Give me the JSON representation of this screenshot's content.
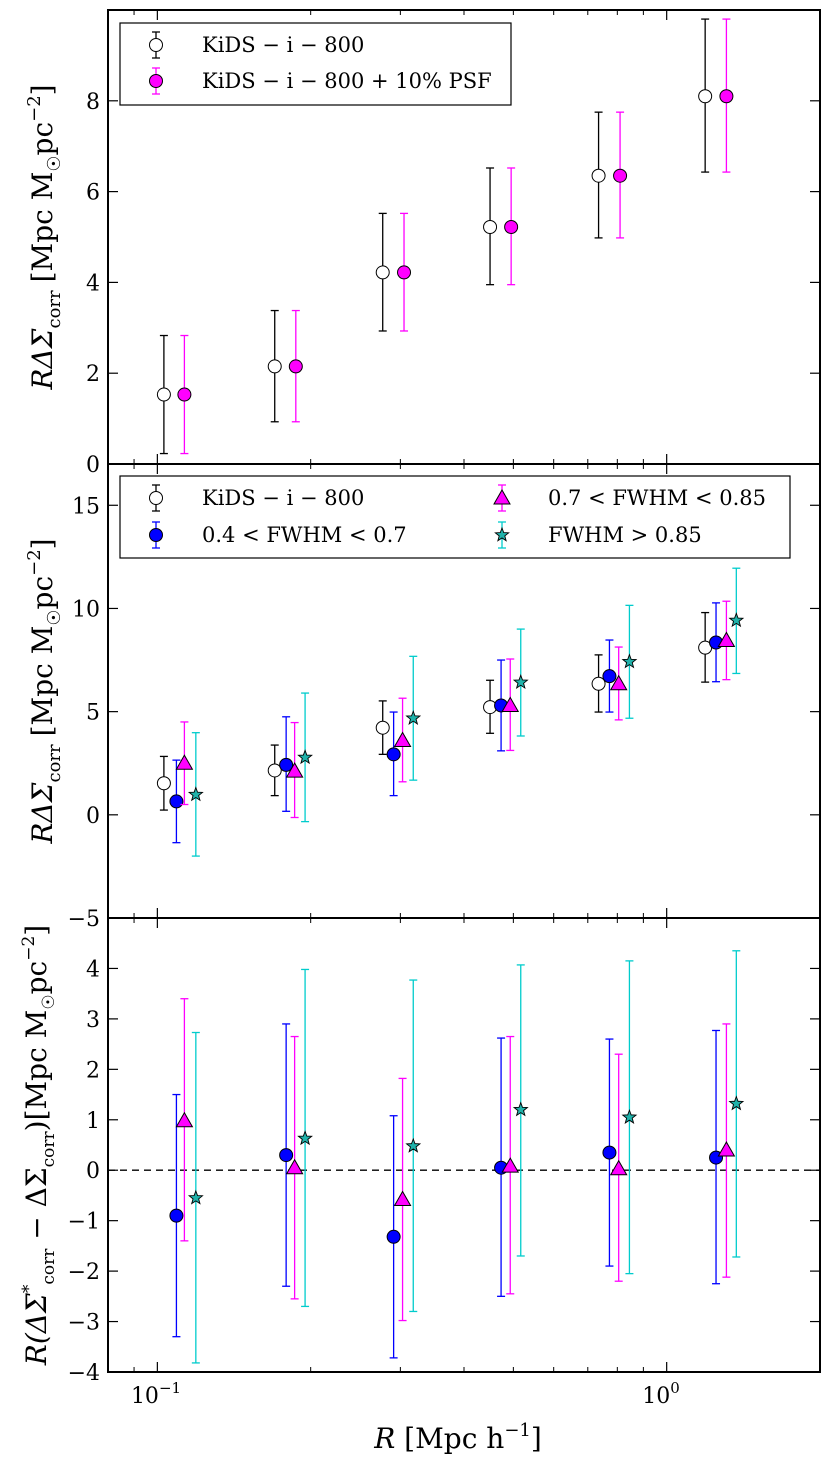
{
  "chart_data": [
    {
      "type": "scatter",
      "panel": "top",
      "ylabel": "RΔΣ_corr [Mpc M☉pc⁻²]",
      "ylim": [
        0,
        10
      ],
      "yticks": [
        0,
        2,
        4,
        6,
        8
      ],
      "ytick_labels": [
        "0",
        "2",
        "4",
        "6",
        "8"
      ],
      "legend_position": "upper-left",
      "series": [
        {
          "name": "KiDS − i − 800",
          "marker": "circle",
          "face_color": "#ffffff",
          "bar_color": "#000000",
          "x": [
            0.103,
            0.17,
            0.277,
            0.45,
            0.735,
            1.19
          ],
          "y": [
            1.53,
            2.15,
            4.22,
            5.22,
            6.35,
            8.1
          ],
          "yerr_low": [
            0.23,
            0.93,
            2.93,
            3.95,
            4.98,
            6.43
          ],
          "yerr_high": [
            2.83,
            3.38,
            5.52,
            6.52,
            7.75,
            9.8
          ]
        },
        {
          "name": "KiDS − i − 800 + 10% PSF",
          "marker": "circle",
          "face_color": "#ff00ff",
          "bar_color": "#ff00ff",
          "x": [
            0.113,
            0.187,
            0.305,
            0.495,
            0.81,
            1.31
          ],
          "y": [
            1.53,
            2.15,
            4.22,
            5.22,
            6.35,
            8.1
          ],
          "yerr_low": [
            0.23,
            0.93,
            2.93,
            3.95,
            4.98,
            6.43
          ],
          "yerr_high": [
            2.83,
            3.38,
            5.52,
            6.52,
            7.75,
            9.8
          ]
        }
      ]
    },
    {
      "type": "scatter",
      "panel": "middle",
      "ylabel": "RΔΣ_corr [Mpc M☉pc⁻²]",
      "ylim": [
        -5,
        17
      ],
      "yticks": [
        -5,
        0,
        5,
        10,
        15
      ],
      "ytick_labels": [
        "−5",
        "0",
        "5",
        "10",
        "15"
      ],
      "legend_position": "upper-left",
      "series": [
        {
          "name": "KiDS − i − 800",
          "marker": "circle",
          "face_color": "#ffffff",
          "bar_color": "#000000",
          "x": [
            0.103,
            0.17,
            0.277,
            0.45,
            0.735,
            1.19
          ],
          "y": [
            1.53,
            2.15,
            4.22,
            5.22,
            6.35,
            8.1
          ],
          "yerr_low": [
            0.23,
            0.93,
            2.93,
            3.95,
            4.98,
            6.43
          ],
          "yerr_high": [
            2.83,
            3.38,
            5.52,
            6.52,
            7.75,
            9.8
          ]
        },
        {
          "name": "0.4 < FWHM < 0.7",
          "marker": "circle",
          "face_color": "#0000ff",
          "bar_color": "#0000ff",
          "x": [
            0.109,
            0.179,
            0.291,
            0.473,
            0.772,
            1.25
          ],
          "y": [
            0.65,
            2.42,
            2.93,
            5.3,
            6.72,
            8.35
          ],
          "yerr_low": [
            -1.35,
            0.17,
            0.93,
            3.1,
            4.98,
            6.45
          ],
          "yerr_high": [
            2.65,
            4.75,
            4.98,
            7.5,
            8.47,
            10.27
          ]
        },
        {
          "name": "0.7 < FWHM < 0.85",
          "marker": "triangle",
          "face_color": "#ff00ff",
          "bar_color": "#ff00ff",
          "x": [
            0.113,
            0.186,
            0.303,
            0.493,
            0.805,
            1.31
          ],
          "y": [
            2.5,
            2.12,
            3.6,
            5.3,
            6.35,
            8.45
          ],
          "yerr_low": [
            0.5,
            -0.13,
            1.6,
            3.12,
            4.6,
            6.55
          ],
          "yerr_high": [
            4.5,
            4.47,
            5.65,
            7.55,
            8.13,
            10.35
          ]
        },
        {
          "name": "FWHM > 0.85",
          "marker": "star",
          "face_color": "#20b2aa",
          "bar_color": "#00cccc",
          "x": [
            0.119,
            0.195,
            0.318,
            0.517,
            0.845,
            1.37
          ],
          "y": [
            0.98,
            2.78,
            4.68,
            6.42,
            7.42,
            9.42
          ],
          "yerr_low": [
            -2.0,
            -0.33,
            1.68,
            3.82,
            4.68,
            6.85
          ],
          "yerr_high": [
            3.98,
            5.9,
            7.68,
            9.0,
            10.15,
            11.95
          ]
        }
      ]
    },
    {
      "type": "scatter",
      "panel": "bottom",
      "xlabel": "R [Mpc h⁻¹]",
      "ylabel": "R(ΔΣ*_corr − ΔΣ_corr) [Mpc M☉pc⁻²]",
      "xscale": "log",
      "xlim": [
        0.08,
        2.0
      ],
      "xticks": [
        0.1,
        1.0
      ],
      "ylim": [
        -4,
        5
      ],
      "yticks": [
        -4,
        -3,
        -2,
        -1,
        0,
        1,
        2,
        3,
        4
      ],
      "ytick_labels": [
        "−4",
        "−3",
        "−2",
        "−1",
        "0",
        "1",
        "2",
        "3",
        "4"
      ],
      "reference_line": 0,
      "series": [
        {
          "name": "0.4 < FWHM < 0.7",
          "marker": "circle",
          "face_color": "#0000ff",
          "bar_color": "#0000ff",
          "x": [
            0.109,
            0.179,
            0.291,
            0.473,
            0.772,
            1.25
          ],
          "y": [
            -0.9,
            0.3,
            -1.32,
            0.05,
            0.35,
            0.25
          ],
          "yerr_low": [
            -3.3,
            -2.3,
            -3.72,
            -2.5,
            -1.9,
            -2.25
          ],
          "yerr_high": [
            1.5,
            2.9,
            1.08,
            2.62,
            2.6,
            2.77
          ]
        },
        {
          "name": "0.7 < FWHM < 0.85",
          "marker": "triangle",
          "face_color": "#ff00ff",
          "bar_color": "#ff00ff",
          "x": [
            0.113,
            0.186,
            0.303,
            0.493,
            0.805,
            1.31
          ],
          "y": [
            0.98,
            0.05,
            -0.58,
            0.08,
            0.03,
            0.4
          ],
          "yerr_low": [
            -1.4,
            -2.55,
            -2.98,
            -2.45,
            -2.2,
            -2.12
          ],
          "yerr_high": [
            3.4,
            2.65,
            1.82,
            2.65,
            2.3,
            2.9
          ]
        },
        {
          "name": "FWHM > 0.85",
          "marker": "star",
          "face_color": "#20b2aa",
          "bar_color": "#00cccc",
          "x": [
            0.119,
            0.195,
            0.318,
            0.517,
            0.845,
            1.37
          ],
          "y": [
            -0.55,
            0.63,
            0.48,
            1.2,
            1.05,
            1.32
          ],
          "yerr_low": [
            -3.82,
            -2.7,
            -2.8,
            -1.7,
            -2.05,
            -1.72
          ],
          "yerr_high": [
            2.73,
            3.98,
            3.77,
            4.07,
            4.15,
            4.35
          ]
        }
      ]
    }
  ],
  "axes": {
    "top_ylabel": {
      "main": "RΔΣ",
      "sub": "corr",
      "unit": "[Mpc M",
      "sun": "☉",
      "pc": "pc",
      "exp": "−2",
      "close": "]"
    },
    "middle_ylabel": {
      "main": "RΔΣ",
      "sub": "corr",
      "unit": "[Mpc M",
      "sun": "☉",
      "pc": "pc",
      "exp": "−2",
      "close": "]"
    },
    "bottom_ylabel": {
      "prefix": "R(ΔΣ",
      "star": "*",
      "sub1": "corr",
      "minus": " − ΔΣ",
      "sub2": "corr",
      "unit": ")[Mpc M",
      "sun": "☉",
      "pc": "pc",
      "exp": "−2",
      "close": "]"
    },
    "xlabel": {
      "main": "R",
      "unit": " [Mpc h",
      "exp": "−1",
      "close": "]"
    },
    "xtick_labels": {
      "base": "10",
      "exp1": "−1",
      "exp2": "0"
    }
  },
  "legends": {
    "top": {
      "entry1": "KiDS − i − 800",
      "entry2": "KiDS − i − 800 + 10% PSF"
    },
    "middle": {
      "entry1": "KiDS − i − 800",
      "entry2": "0.4 < FWHM < 0.7",
      "entry3": "0.7 < FWHM < 0.85",
      "entry4": "FWHM > 0.85"
    }
  }
}
